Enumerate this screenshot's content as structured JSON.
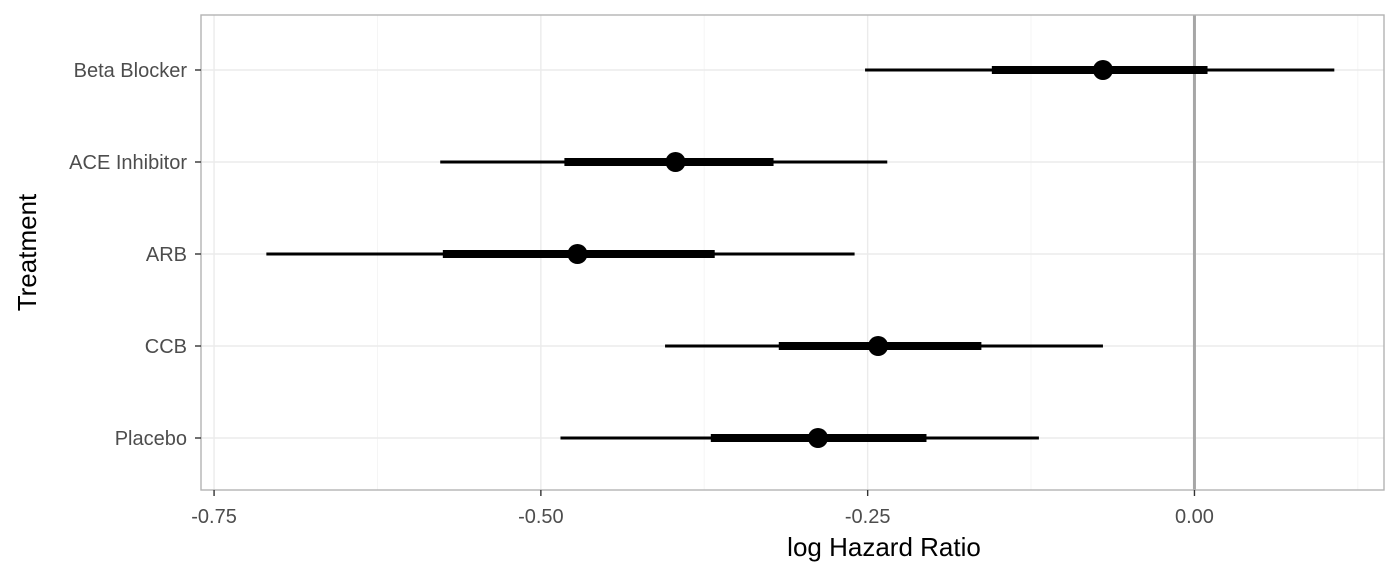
{
  "chart_data": {
    "type": "pointrange",
    "title": "",
    "xlabel": "log Hazard Ratio",
    "ylabel": "Treatment",
    "xlim": [
      -0.76,
      0.145
    ],
    "x_ticks": [
      -0.75,
      -0.5,
      -0.25,
      0.0
    ],
    "x_tick_labels": [
      "-0.75",
      "-0.50",
      "-0.25",
      "0.00"
    ],
    "reference_line_x": 0.0,
    "grid": true,
    "categories": [
      "Beta Blocker",
      "ACE Inhibitor",
      "ARB",
      "CCB",
      "Placebo"
    ],
    "estimates": [
      {
        "label": "Beta Blocker",
        "estimate": -0.07,
        "inner": [
          -0.155,
          0.01
        ],
        "outer": [
          -0.252,
          0.107
        ]
      },
      {
        "label": "ACE Inhibitor",
        "estimate": -0.397,
        "inner": [
          -0.482,
          -0.322
        ],
        "outer": [
          -0.577,
          -0.235
        ]
      },
      {
        "label": "ARB",
        "estimate": -0.472,
        "inner": [
          -0.575,
          -0.367
        ],
        "outer": [
          -0.71,
          -0.26
        ]
      },
      {
        "label": "CCB",
        "estimate": -0.242,
        "inner": [
          -0.318,
          -0.163
        ],
        "outer": [
          -0.405,
          -0.07
        ]
      },
      {
        "label": "Placebo",
        "estimate": -0.288,
        "inner": [
          -0.37,
          -0.205
        ],
        "outer": [
          -0.485,
          -0.119
        ]
      }
    ]
  }
}
